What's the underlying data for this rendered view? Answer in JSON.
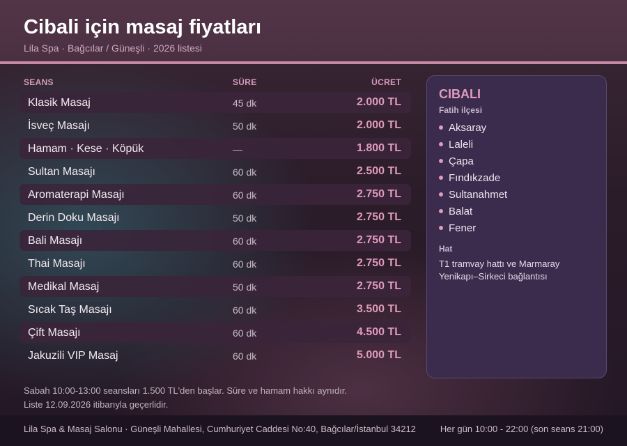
{
  "header": {
    "title": "Cibali için masaj fiyatları",
    "subtitle": "Lila Spa · Bağcılar / Güneşli · 2026 listesi"
  },
  "table": {
    "columns": {
      "name": "SEANS",
      "duration": "SÜRE",
      "price": "ÜCRET"
    },
    "rows": [
      {
        "name": "Klasik Masaj",
        "duration": "45 dk",
        "price": "2.000 TL"
      },
      {
        "name": "İsveç Masajı",
        "duration": "50 dk",
        "price": "2.000 TL"
      },
      {
        "name": "Hamam · Kese · Köpük",
        "duration": "—",
        "price": "1.800 TL"
      },
      {
        "name": "Sultan Masajı",
        "duration": "60 dk",
        "price": "2.500 TL"
      },
      {
        "name": "Aromaterapi Masajı",
        "duration": "60 dk",
        "price": "2.750 TL"
      },
      {
        "name": "Derin Doku Masajı",
        "duration": "50 dk",
        "price": "2.750 TL"
      },
      {
        "name": "Bali Masajı",
        "duration": "60 dk",
        "price": "2.750 TL"
      },
      {
        "name": "Thai Masajı",
        "duration": "60 dk",
        "price": "2.750 TL"
      },
      {
        "name": "Medikal Masaj",
        "duration": "50 dk",
        "price": "2.750 TL"
      },
      {
        "name": "Sıcak Taş Masajı",
        "duration": "60 dk",
        "price": "3.500 TL"
      },
      {
        "name": "Çift Masajı",
        "duration": "60 dk",
        "price": "4.500 TL"
      },
      {
        "name": "Jakuzili VIP Masaj",
        "duration": "60 dk",
        "price": "5.000 TL"
      }
    ]
  },
  "notes": {
    "line1": "Sabah 10:00-13:00 seansları 1.500 TL'den başlar. Süre ve hamam hakkı aynıdır.",
    "line2": "Liste 12.09.2026 itibarıyla geçerlidir."
  },
  "sidebar": {
    "title": "CIBALI",
    "subtitle": "Fatih ilçesi",
    "places": [
      "Aksaray",
      "Laleli",
      "Çapa",
      "Fındıkzade",
      "Sultanahmet",
      "Balat",
      "Fener"
    ],
    "transit_label": "Hat",
    "transit_text": "T1 tramvay hattı ve Marmaray Yenikapı–Sirkeci bağlantısı"
  },
  "footer": {
    "address": "Lila Spa & Masaj Salonu · Güneşli Mahallesi, Cumhuriyet Caddesi No:40, Bağcılar/İstanbul 34212",
    "hours": "Her gün 10:00 - 22:00 (son seans 21:00)"
  },
  "colors": {
    "accent": "#e09bbd",
    "header_bg": "#4a3042",
    "header_rule": "#c88aa7",
    "sidebar_bg": "#3b2b4c",
    "footer_bg": "#1c1320"
  },
  "icons": {
    "list_bullet": "dot-bullet-icon"
  }
}
